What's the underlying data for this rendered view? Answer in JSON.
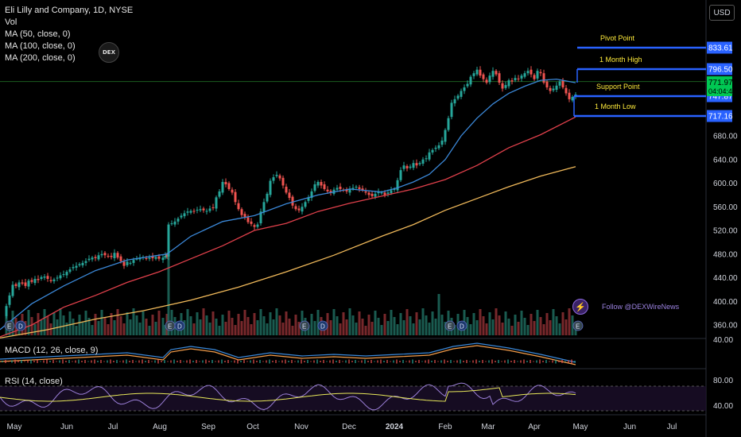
{
  "header": {
    "symbol_line": "Eli Lilly and Company, 1D, NYSE",
    "indicators": [
      "Vol",
      "MA (50, close, 0)",
      "MA (100, close, 0)",
      "MA (200, close, 0)"
    ],
    "currency_button": "USD",
    "logo_text": "DEX"
  },
  "macd_label": "MACD (12, 26, close, 9)",
  "rsi_label": "RSI (14, close)",
  "follow_text": "Follow @DEXWireNews",
  "chart_data": {
    "type": "line",
    "title": "Eli Lilly and Company, 1D, NYSE",
    "x_months": [
      "May",
      "Jun",
      "Jul",
      "Aug",
      "Sep",
      "Oct",
      "Nov",
      "Dec",
      "2024",
      "Feb",
      "Mar",
      "Apr",
      "May",
      "Jun",
      "Jul"
    ],
    "y_ticks": [
      360,
      400,
      440,
      480,
      520,
      560,
      600,
      640,
      680
    ],
    "ylim": [
      340,
      850
    ],
    "price_series": [
      {
        "name": "Close",
        "color": "#d1d4dc",
        "points": [
          [
            0,
            375
          ],
          [
            8,
            392
          ],
          [
            12,
            410
          ],
          [
            16,
            428
          ],
          [
            20,
            426
          ],
          [
            24,
            432
          ],
          [
            28,
            430
          ],
          [
            32,
            426
          ],
          [
            36,
            435
          ],
          [
            40,
            433
          ],
          [
            44,
            438
          ],
          [
            48,
            436
          ],
          [
            52,
            441
          ],
          [
            56,
            442
          ],
          [
            60,
            438
          ],
          [
            64,
            434
          ],
          [
            68,
            437
          ],
          [
            72,
            440
          ],
          [
            76,
            444
          ],
          [
            80,
            446
          ],
          [
            84,
            450
          ],
          [
            88,
            454
          ],
          [
            92,
            458
          ],
          [
            96,
            460
          ],
          [
            100,
            463
          ],
          [
            104,
            465
          ],
          [
            108,
            468
          ],
          [
            112,
            472
          ],
          [
            116,
            474
          ],
          [
            120,
            473
          ],
          [
            124,
            478
          ],
          [
            128,
            480
          ],
          [
            132,
            478
          ],
          [
            136,
            476
          ],
          [
            140,
            475
          ],
          [
            144,
            482
          ],
          [
            148,
            474
          ],
          [
            152,
            468
          ],
          [
            156,
            460
          ],
          [
            160,
            467
          ],
          [
            164,
            465
          ],
          [
            168,
            470
          ],
          [
            172,
            472
          ],
          [
            176,
            474
          ],
          [
            180,
            475
          ],
          [
            184,
            472
          ],
          [
            188,
            474
          ],
          [
            192,
            473
          ],
          [
            196,
            475
          ],
          [
            200,
            472
          ],
          [
            205,
            474
          ],
          [
            208,
            477
          ],
          [
            210,
            476
          ],
          [
            212,
            530
          ],
          [
            216,
            532
          ],
          [
            220,
            535
          ],
          [
            224,
            540
          ],
          [
            228,
            545
          ],
          [
            232,
            549
          ],
          [
            236,
            552
          ],
          [
            240,
            553
          ],
          [
            244,
            552
          ],
          [
            248,
            555
          ],
          [
            252,
            556
          ],
          [
            256,
            554
          ],
          [
            260,
            553
          ],
          [
            264,
            557
          ],
          [
            268,
            558
          ],
          [
            272,
            576
          ],
          [
            276,
            586
          ],
          [
            280,
            602
          ],
          [
            284,
            598
          ],
          [
            288,
            590
          ],
          [
            292,
            584
          ],
          [
            296,
            568
          ],
          [
            300,
            556
          ],
          [
            304,
            546
          ],
          [
            308,
            543
          ],
          [
            312,
            534
          ],
          [
            316,
            531
          ],
          [
            320,
            526
          ],
          [
            324,
            530
          ],
          [
            328,
            552
          ],
          [
            332,
            568
          ],
          [
            336,
            582
          ],
          [
            340,
            604
          ],
          [
            344,
            610
          ],
          [
            348,
            614
          ],
          [
            352,
            608
          ],
          [
            356,
            596
          ],
          [
            360,
            584
          ],
          [
            364,
            575
          ],
          [
            368,
            562
          ],
          [
            372,
            556
          ],
          [
            376,
            554
          ],
          [
            380,
            560
          ],
          [
            384,
            568
          ],
          [
            388,
            576
          ],
          [
            392,
            586
          ],
          [
            396,
            598
          ],
          [
            400,
            602
          ],
          [
            404,
            596
          ],
          [
            408,
            590
          ],
          [
            412,
            586
          ],
          [
            416,
            584
          ],
          [
            420,
            589
          ],
          [
            424,
            592
          ],
          [
            428,
            590
          ],
          [
            432,
            588
          ],
          [
            436,
            586
          ],
          [
            440,
            590
          ],
          [
            444,
            592
          ],
          [
            448,
            594
          ],
          [
            452,
            590
          ],
          [
            456,
            588
          ],
          [
            460,
            584
          ],
          [
            464,
            580
          ],
          [
            468,
            578
          ],
          [
            472,
            582
          ],
          [
            476,
            585
          ],
          [
            480,
            584
          ],
          [
            484,
            580
          ],
          [
            488,
            584
          ],
          [
            492,
            588
          ],
          [
            496,
            590
          ],
          [
            500,
            605
          ],
          [
            504,
            622
          ],
          [
            508,
            630
          ],
          [
            512,
            625
          ],
          [
            516,
            628
          ],
          [
            520,
            634
          ],
          [
            524,
            630
          ],
          [
            528,
            634
          ],
          [
            532,
            640
          ],
          [
            536,
            642
          ],
          [
            540,
            652
          ],
          [
            544,
            656
          ],
          [
            548,
            660
          ],
          [
            552,
            664
          ],
          [
            556,
            672
          ],
          [
            560,
            690
          ],
          [
            564,
            710
          ],
          [
            568,
            736
          ],
          [
            572,
            742
          ],
          [
            576,
            748
          ],
          [
            580,
            756
          ],
          [
            584,
            762
          ],
          [
            588,
            768
          ],
          [
            592,
            780
          ],
          [
            596,
            786
          ],
          [
            600,
            792
          ],
          [
            604,
            782
          ],
          [
            608,
            776
          ],
          [
            612,
            770
          ],
          [
            616,
            782
          ],
          [
            620,
            790
          ],
          [
            624,
            784
          ],
          [
            628,
            770
          ],
          [
            632,
            760
          ],
          [
            636,
            766
          ],
          [
            640,
            774
          ],
          [
            644,
            772
          ],
          [
            648,
            778
          ],
          [
            652,
            776
          ],
          [
            656,
            782
          ],
          [
            660,
            786
          ],
          [
            664,
            790
          ],
          [
            668,
            784
          ],
          [
            672,
            776
          ],
          [
            676,
            790
          ],
          [
            680,
            786
          ],
          [
            684,
            770
          ],
          [
            688,
            762
          ],
          [
            692,
            756
          ],
          [
            696,
            760
          ],
          [
            700,
            765
          ],
          [
            704,
            772
          ],
          [
            708,
            762
          ],
          [
            712,
            752
          ],
          [
            716,
            742
          ],
          [
            720,
            746
          ],
          [
            724,
            750
          ]
        ]
      },
      {
        "name": "MA (50, close, 0)",
        "color": "#3b88d8",
        "points": [
          [
            0,
            352
          ],
          [
            40,
            396
          ],
          [
            80,
            426
          ],
          [
            120,
            452
          ],
          [
            160,
            470
          ],
          [
            200,
            478
          ],
          [
            210,
            480
          ],
          [
            240,
            510
          ],
          [
            280,
            535
          ],
          [
            320,
            545
          ],
          [
            360,
            565
          ],
          [
            400,
            580
          ],
          [
            440,
            590
          ],
          [
            480,
            585
          ],
          [
            500,
            592
          ],
          [
            520,
            602
          ],
          [
            540,
            615
          ],
          [
            560,
            640
          ],
          [
            580,
            680
          ],
          [
            600,
            710
          ],
          [
            620,
            734
          ],
          [
            640,
            752
          ],
          [
            660,
            764
          ],
          [
            680,
            774
          ],
          [
            700,
            776
          ],
          [
            724,
            770
          ]
        ]
      },
      {
        "name": "MA (100, close, 0)",
        "color": "#e0404b",
        "points": [
          [
            0,
            340
          ],
          [
            40,
            360
          ],
          [
            80,
            390
          ],
          [
            120,
            410
          ],
          [
            160,
            432
          ],
          [
            200,
            450
          ],
          [
            240,
            472
          ],
          [
            280,
            494
          ],
          [
            320,
            520
          ],
          [
            360,
            532
          ],
          [
            400,
            552
          ],
          [
            440,
            566
          ],
          [
            480,
            578
          ],
          [
            520,
            590
          ],
          [
            560,
            606
          ],
          [
            600,
            630
          ],
          [
            640,
            660
          ],
          [
            680,
            682
          ],
          [
            724,
            712
          ]
        ]
      },
      {
        "name": "MA (200, close, 0)",
        "color": "#f0b95a",
        "points": [
          [
            0,
            338
          ],
          [
            60,
            352
          ],
          [
            120,
            370
          ],
          [
            180,
            384
          ],
          [
            240,
            402
          ],
          [
            300,
            424
          ],
          [
            360,
            450
          ],
          [
            420,
            478
          ],
          [
            480,
            510
          ],
          [
            520,
            530
          ],
          [
            560,
            554
          ],
          [
            600,
            574
          ],
          [
            640,
            594
          ],
          [
            680,
            612
          ],
          [
            724,
            628
          ]
        ]
      }
    ],
    "horizontal_levels": [
      {
        "label": "Pivot Point",
        "value": 833.61,
        "price_tag": "833.61"
      },
      {
        "label": "1 Month High",
        "value": 796.5,
        "price_tag": "796.50"
      },
      {
        "label": "Support Point",
        "value": 747.87,
        "price_tag": "747.87"
      },
      {
        "label": "1 Month Low",
        "value": 717.16,
        "price_tag": "717.16"
      }
    ],
    "current_price": {
      "value": "771.97",
      "countdown": "04:04:45",
      "color": "#00c853"
    },
    "rsi_ticks": [
      40,
      80
    ],
    "macd_tick": 40,
    "earnings_markers": [
      "E",
      "D",
      "E",
      "D",
      "E",
      "D",
      "E",
      "D",
      "E",
      "D",
      "E"
    ]
  }
}
